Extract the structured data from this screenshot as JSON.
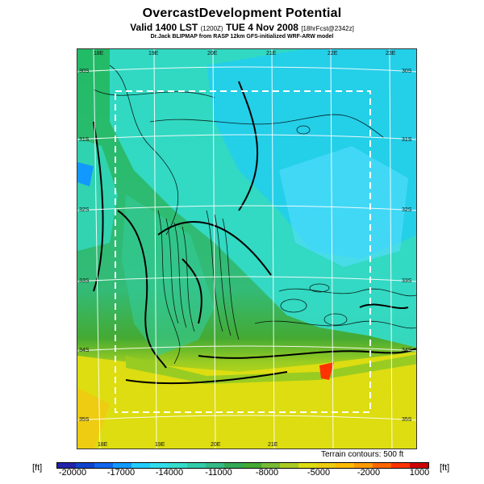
{
  "header": {
    "title": "OvercastDevelopment Potential",
    "subtitle_main": "Valid 1400 LST",
    "subtitle_time": "(1200Z)",
    "subtitle_date": "TUE 4 Nov 2008",
    "subtitle_fcst": "[18hrFcst@2342z]",
    "credit": "Dr.Jack BLIPMAP from RASP 12km GFS-initialized WRF-ARW model"
  },
  "map": {
    "lon_labels_top": [
      "18E",
      "19E",
      "20E",
      "21E",
      "22E",
      "23E"
    ],
    "lon_labels_bottom": [
      "18E",
      "19E",
      "20E",
      "21E"
    ],
    "lat_labels_left": [
      "30S",
      "31S",
      "32S",
      "33S",
      "34S",
      "35S"
    ],
    "lat_labels_right": [
      "30S",
      "31S",
      "32S",
      "33S",
      "34S",
      "35S"
    ],
    "terrain_note": "Terrain contours: 500 ft"
  },
  "colorbar": {
    "unit_left": "[ft]",
    "unit_right": "[ft]",
    "ticks": [
      "-20000",
      "-17000",
      "-14000",
      "-11000",
      "-8000",
      "-5000",
      "-2000",
      "1000"
    ],
    "colors": [
      "#2222aa",
      "#1144cc",
      "#1166ee",
      "#1199ff",
      "#22ccff",
      "#33ddee",
      "#33ddcc",
      "#33ccaa",
      "#33bb88",
      "#33aa55",
      "#44aa33",
      "#77bb33",
      "#aacc22",
      "#dddd11",
      "#eecc11",
      "#ffbb00",
      "#ff9900",
      "#ff6600",
      "#ff3300",
      "#cc0000"
    ]
  }
}
